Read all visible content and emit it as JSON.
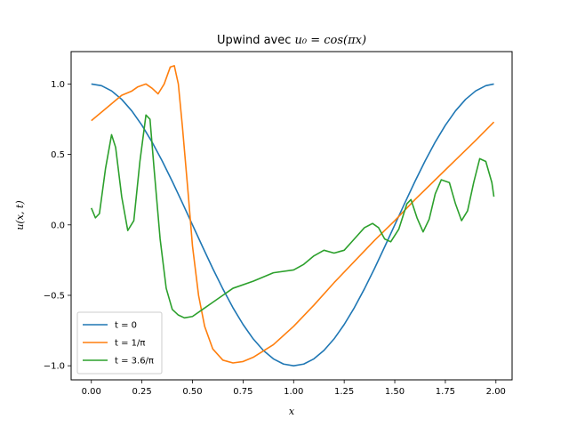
{
  "chart_data": {
    "type": "line",
    "title_prefix": "Upwind avec ",
    "title_math": "u₀ = cos(πx)",
    "xlabel": "x",
    "ylabel": "u(x, t)",
    "xlim": [
      -0.1,
      2.08
    ],
    "ylim": [
      -1.1,
      1.23
    ],
    "xticks": [
      0.0,
      0.25,
      0.5,
      0.75,
      1.0,
      1.25,
      1.5,
      1.75,
      2.0
    ],
    "xtick_labels": [
      "0.00",
      "0.25",
      "0.50",
      "0.75",
      "1.00",
      "1.25",
      "1.50",
      "1.75",
      "2.00"
    ],
    "yticks": [
      -1.0,
      -0.5,
      0.0,
      0.5,
      1.0
    ],
    "ytick_labels": [
      "−1.0",
      "−0.5",
      "0.0",
      "0.5",
      "1.0"
    ],
    "grid": false,
    "legend_position": "lower-left",
    "series": [
      {
        "name": "t = 0",
        "color": "#1f77b4",
        "x": [
          0.0,
          0.05,
          0.1,
          0.15,
          0.2,
          0.25,
          0.3,
          0.35,
          0.4,
          0.45,
          0.5,
          0.55,
          0.6,
          0.65,
          0.7,
          0.75,
          0.8,
          0.85,
          0.9,
          0.95,
          1.0,
          1.05,
          1.1,
          1.15,
          1.2,
          1.25,
          1.3,
          1.35,
          1.4,
          1.45,
          1.5,
          1.55,
          1.6,
          1.65,
          1.7,
          1.75,
          1.8,
          1.85,
          1.9,
          1.95,
          1.99
        ],
        "y": [
          1.0,
          0.988,
          0.951,
          0.891,
          0.809,
          0.707,
          0.588,
          0.454,
          0.309,
          0.156,
          0.0,
          -0.156,
          -0.309,
          -0.454,
          -0.588,
          -0.707,
          -0.809,
          -0.891,
          -0.951,
          -0.988,
          -1.0,
          -0.988,
          -0.951,
          -0.891,
          -0.809,
          -0.707,
          -0.588,
          -0.454,
          -0.309,
          -0.156,
          0.0,
          0.156,
          0.309,
          0.454,
          0.588,
          0.707,
          0.809,
          0.891,
          0.951,
          0.988,
          1.0
        ]
      },
      {
        "name": "t = 1/π",
        "color": "#ff7f0e",
        "x": [
          0.0,
          0.05,
          0.1,
          0.15,
          0.2,
          0.23,
          0.27,
          0.3,
          0.33,
          0.36,
          0.39,
          0.41,
          0.43,
          0.45,
          0.48,
          0.5,
          0.53,
          0.56,
          0.6,
          0.65,
          0.7,
          0.75,
          0.8,
          0.9,
          1.0,
          1.1,
          1.2,
          1.3,
          1.4,
          1.5,
          1.6,
          1.7,
          1.8,
          1.9,
          1.99
        ],
        "y": [
          0.74,
          0.8,
          0.86,
          0.92,
          0.95,
          0.98,
          1.0,
          0.97,
          0.93,
          1.0,
          1.12,
          1.13,
          1.0,
          0.7,
          0.2,
          -0.15,
          -0.5,
          -0.72,
          -0.88,
          -0.96,
          -0.98,
          -0.97,
          -0.94,
          -0.85,
          -0.72,
          -0.57,
          -0.41,
          -0.26,
          -0.11,
          0.03,
          0.18,
          0.32,
          0.46,
          0.6,
          0.73
        ]
      },
      {
        "name": "t = 3.6/π",
        "color": "#2ca02c",
        "x": [
          0.0,
          0.02,
          0.04,
          0.07,
          0.1,
          0.12,
          0.15,
          0.18,
          0.21,
          0.24,
          0.27,
          0.29,
          0.31,
          0.34,
          0.37,
          0.4,
          0.43,
          0.46,
          0.5,
          0.55,
          0.6,
          0.7,
          0.8,
          0.9,
          1.0,
          1.05,
          1.1,
          1.15,
          1.2,
          1.25,
          1.3,
          1.35,
          1.39,
          1.42,
          1.45,
          1.48,
          1.52,
          1.56,
          1.58,
          1.61,
          1.64,
          1.67,
          1.7,
          1.73,
          1.77,
          1.8,
          1.83,
          1.86,
          1.89,
          1.92,
          1.95,
          1.98,
          1.99
        ],
        "y": [
          0.12,
          0.05,
          0.08,
          0.4,
          0.64,
          0.55,
          0.2,
          -0.04,
          0.03,
          0.45,
          0.78,
          0.75,
          0.4,
          -0.1,
          -0.45,
          -0.6,
          -0.64,
          -0.66,
          -0.65,
          -0.6,
          -0.55,
          -0.45,
          -0.4,
          -0.34,
          -0.32,
          -0.28,
          -0.22,
          -0.18,
          -0.2,
          -0.18,
          -0.1,
          -0.02,
          0.01,
          -0.02,
          -0.1,
          -0.12,
          -0.03,
          0.15,
          0.18,
          0.05,
          -0.05,
          0.04,
          0.22,
          0.32,
          0.3,
          0.15,
          0.03,
          0.1,
          0.3,
          0.47,
          0.45,
          0.3,
          0.2
        ]
      }
    ]
  }
}
